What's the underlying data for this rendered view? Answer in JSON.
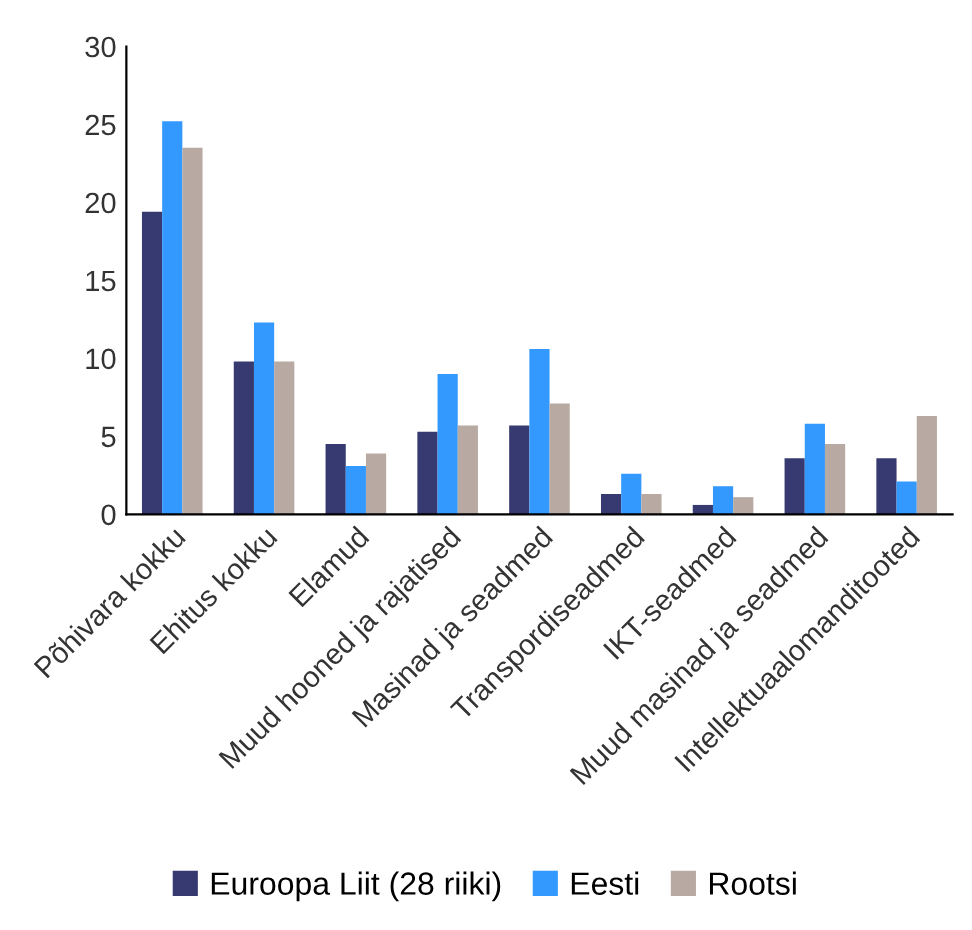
{
  "chart_data": {
    "type": "bar",
    "categories": [
      "Põhivara kokku",
      "Ehitus kokku",
      "Elamud",
      "Muud hooned ja rajatised",
      "Masinad ja seadmed",
      "Transpordiseadmed",
      "IKT-seadmed",
      "Muud masinad ja seadmed",
      "Intellektuaalomanditooted"
    ],
    "series": [
      {
        "name": "Euroopa Liit (28 riiki)",
        "color": "#363a70",
        "values": [
          19.4,
          9.8,
          4.5,
          5.3,
          5.7,
          1.3,
          0.6,
          3.6,
          3.6
        ]
      },
      {
        "name": "Eesti",
        "color": "#3399ff",
        "values": [
          25.2,
          12.3,
          3.1,
          9.0,
          10.6,
          2.6,
          1.8,
          5.8,
          2.1
        ]
      },
      {
        "name": "Rootsi",
        "color": "#b8aaa2",
        "values": [
          23.5,
          9.8,
          3.9,
          5.7,
          7.1,
          1.3,
          1.1,
          4.5,
          6.3
        ]
      }
    ],
    "ylim": [
      0,
      30
    ],
    "yticks": [
      0,
      5,
      10,
      15,
      20,
      25,
      30
    ],
    "grid": false,
    "legend": "bottom"
  }
}
